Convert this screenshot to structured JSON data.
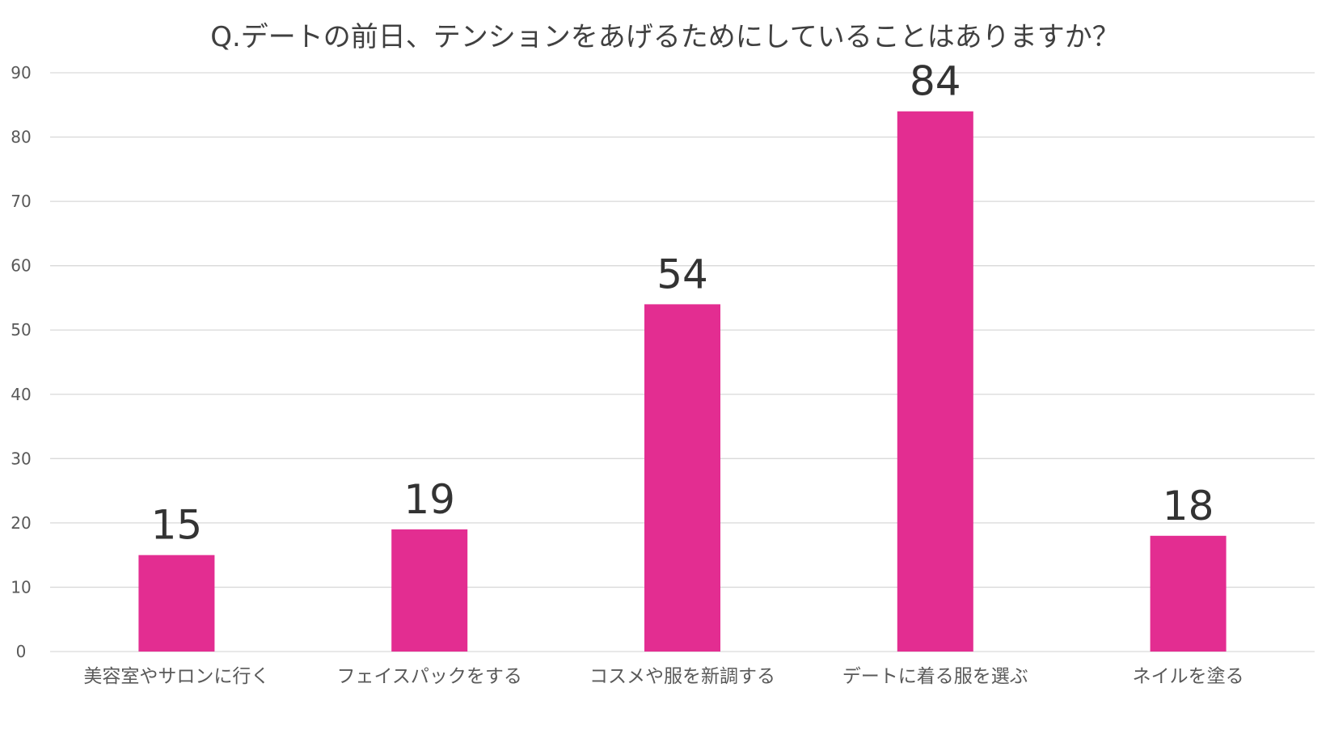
{
  "chart_data": {
    "type": "bar",
    "title": "Q.デートの前日、テンションをあげるためにしていることはありますか？",
    "categories": [
      "美容室やサロンに行く",
      "フェイスパックをする",
      "コスメや服を新調する",
      "デートに着る服を選ぶ",
      "ネイルを塗る"
    ],
    "values": [
      15,
      19,
      54,
      84,
      18
    ],
    "data_labels": [
      "15",
      "19",
      "54",
      "84",
      "18"
    ],
    "xlabel": "",
    "ylabel": "",
    "ylim": [
      0,
      90
    ],
    "yticks": [
      0,
      10,
      20,
      30,
      40,
      50,
      60,
      70,
      80,
      90
    ],
    "grid": true,
    "legend": "none",
    "bar_color": "#E32D91",
    "grid_color": "#D9D9D9"
  }
}
